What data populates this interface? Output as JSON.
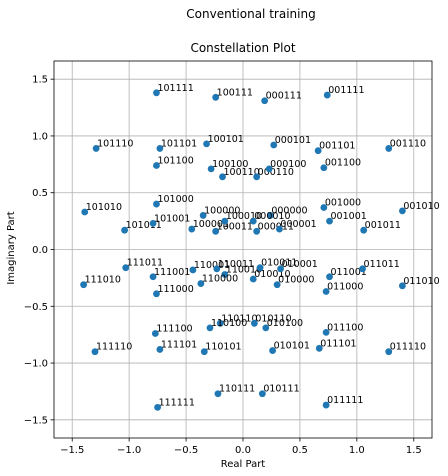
{
  "figure": {
    "suptitle": "Conventional training"
  },
  "chart_data": {
    "type": "scatter",
    "title": "Constellation Plot",
    "xlabel": "Real Part",
    "ylabel": "Imaginary Part",
    "xlim": [
      -1.66,
      1.66
    ],
    "ylim": [
      -1.66,
      1.66
    ],
    "xticks": [
      -1.5,
      -1.0,
      -0.5,
      0.0,
      0.5,
      1.0,
      1.5
    ],
    "yticks": [
      -1.5,
      -1.0,
      -0.5,
      0.0,
      0.5,
      1.0,
      1.5
    ],
    "xtick_labels": [
      "−1.5",
      "−1.0",
      "−0.5",
      "0.0",
      "0.5",
      "1.0",
      "1.5"
    ],
    "ytick_labels": [
      "−1.5",
      "−1.0",
      "−0.5",
      "0.0",
      "0.5",
      "1.0",
      "1.5"
    ],
    "grid": true,
    "marker_color": "#1f77b4",
    "points": [
      {
        "x": -0.76,
        "y": 1.38,
        "label": "101111"
      },
      {
        "x": -0.24,
        "y": 1.34,
        "label": "100111"
      },
      {
        "x": 0.19,
        "y": 1.31,
        "label": "000111"
      },
      {
        "x": 0.74,
        "y": 1.36,
        "label": "001111"
      },
      {
        "x": -1.29,
        "y": 0.89,
        "label": "101110"
      },
      {
        "x": -0.73,
        "y": 0.89,
        "label": "101101"
      },
      {
        "x": -0.32,
        "y": 0.93,
        "label": "100101"
      },
      {
        "x": 0.27,
        "y": 0.92,
        "label": "000101"
      },
      {
        "x": 0.66,
        "y": 0.87,
        "label": "001101"
      },
      {
        "x": 1.28,
        "y": 0.89,
        "label": "001110"
      },
      {
        "x": -0.76,
        "y": 0.74,
        "label": "101100"
      },
      {
        "x": -0.28,
        "y": 0.71,
        "label": "100100"
      },
      {
        "x": -0.18,
        "y": 0.64,
        "label": "100110"
      },
      {
        "x": 0.12,
        "y": 0.64,
        "label": "000110"
      },
      {
        "x": 0.23,
        "y": 0.71,
        "label": "000100"
      },
      {
        "x": 0.71,
        "y": 0.72,
        "label": "001100"
      },
      {
        "x": -1.39,
        "y": 0.33,
        "label": "101010"
      },
      {
        "x": -0.76,
        "y": 0.4,
        "label": "101000"
      },
      {
        "x": -0.35,
        "y": 0.3,
        "label": "100000"
      },
      {
        "x": 0.24,
        "y": 0.3,
        "label": "000000"
      },
      {
        "x": 0.71,
        "y": 0.37,
        "label": "001000"
      },
      {
        "x": 1.4,
        "y": 0.34,
        "label": "001010"
      },
      {
        "x": -1.04,
        "y": 0.17,
        "label": "101011"
      },
      {
        "x": -0.79,
        "y": 0.23,
        "label": "101001"
      },
      {
        "x": -0.45,
        "y": 0.18,
        "label": "100001"
      },
      {
        "x": -0.24,
        "y": 0.16,
        "label": "100011"
      },
      {
        "x": -0.16,
        "y": 0.25,
        "label": "100010"
      },
      {
        "x": 0.09,
        "y": 0.25,
        "label": "000010"
      },
      {
        "x": 0.12,
        "y": 0.16,
        "label": "000011"
      },
      {
        "x": 0.32,
        "y": 0.18,
        "label": "000001"
      },
      {
        "x": 0.76,
        "y": 0.25,
        "label": "001001"
      },
      {
        "x": 1.06,
        "y": 0.17,
        "label": "001011"
      },
      {
        "x": -1.03,
        "y": -0.16,
        "label": "111011"
      },
      {
        "x": -0.79,
        "y": -0.24,
        "label": "111001"
      },
      {
        "x": -0.44,
        "y": -0.18,
        "label": "110001"
      },
      {
        "x": -0.23,
        "y": -0.17,
        "label": "110011"
      },
      {
        "x": -0.16,
        "y": -0.22,
        "label": "110010"
      },
      {
        "x": 0.09,
        "y": -0.26,
        "label": "010010"
      },
      {
        "x": 0.15,
        "y": -0.16,
        "label": "010011"
      },
      {
        "x": 0.33,
        "y": -0.17,
        "label": "010001"
      },
      {
        "x": 0.76,
        "y": -0.24,
        "label": "011001"
      },
      {
        "x": 1.05,
        "y": -0.17,
        "label": "011011"
      },
      {
        "x": -1.4,
        "y": -0.31,
        "label": "111010"
      },
      {
        "x": -0.37,
        "y": -0.3,
        "label": "110000"
      },
      {
        "x": 0.3,
        "y": -0.31,
        "label": "010000"
      },
      {
        "x": -0.76,
        "y": -0.39,
        "label": "111000"
      },
      {
        "x": 0.73,
        "y": -0.37,
        "label": "011000"
      },
      {
        "x": 1.4,
        "y": -0.32,
        "label": "011010"
      },
      {
        "x": -0.2,
        "y": -0.65,
        "label": "110110"
      },
      {
        "x": 0.1,
        "y": -0.65,
        "label": "010110"
      },
      {
        "x": -0.29,
        "y": -0.69,
        "label": "110100"
      },
      {
        "x": 0.2,
        "y": -0.69,
        "label": "010100"
      },
      {
        "x": -0.77,
        "y": -0.74,
        "label": "111100"
      },
      {
        "x": 0.73,
        "y": -0.73,
        "label": "011100"
      },
      {
        "x": -1.3,
        "y": -0.9,
        "label": "111110"
      },
      {
        "x": -0.73,
        "y": -0.88,
        "label": "111101"
      },
      {
        "x": -0.34,
        "y": -0.9,
        "label": "110101"
      },
      {
        "x": 0.26,
        "y": -0.89,
        "label": "010101"
      },
      {
        "x": 0.67,
        "y": -0.87,
        "label": "011101"
      },
      {
        "x": 1.28,
        "y": -0.9,
        "label": "011110"
      },
      {
        "x": -0.22,
        "y": -1.27,
        "label": "110111"
      },
      {
        "x": 0.17,
        "y": -1.27,
        "label": "010111"
      },
      {
        "x": -0.75,
        "y": -1.39,
        "label": "111111"
      },
      {
        "x": 0.73,
        "y": -1.37,
        "label": "011111"
      }
    ]
  }
}
